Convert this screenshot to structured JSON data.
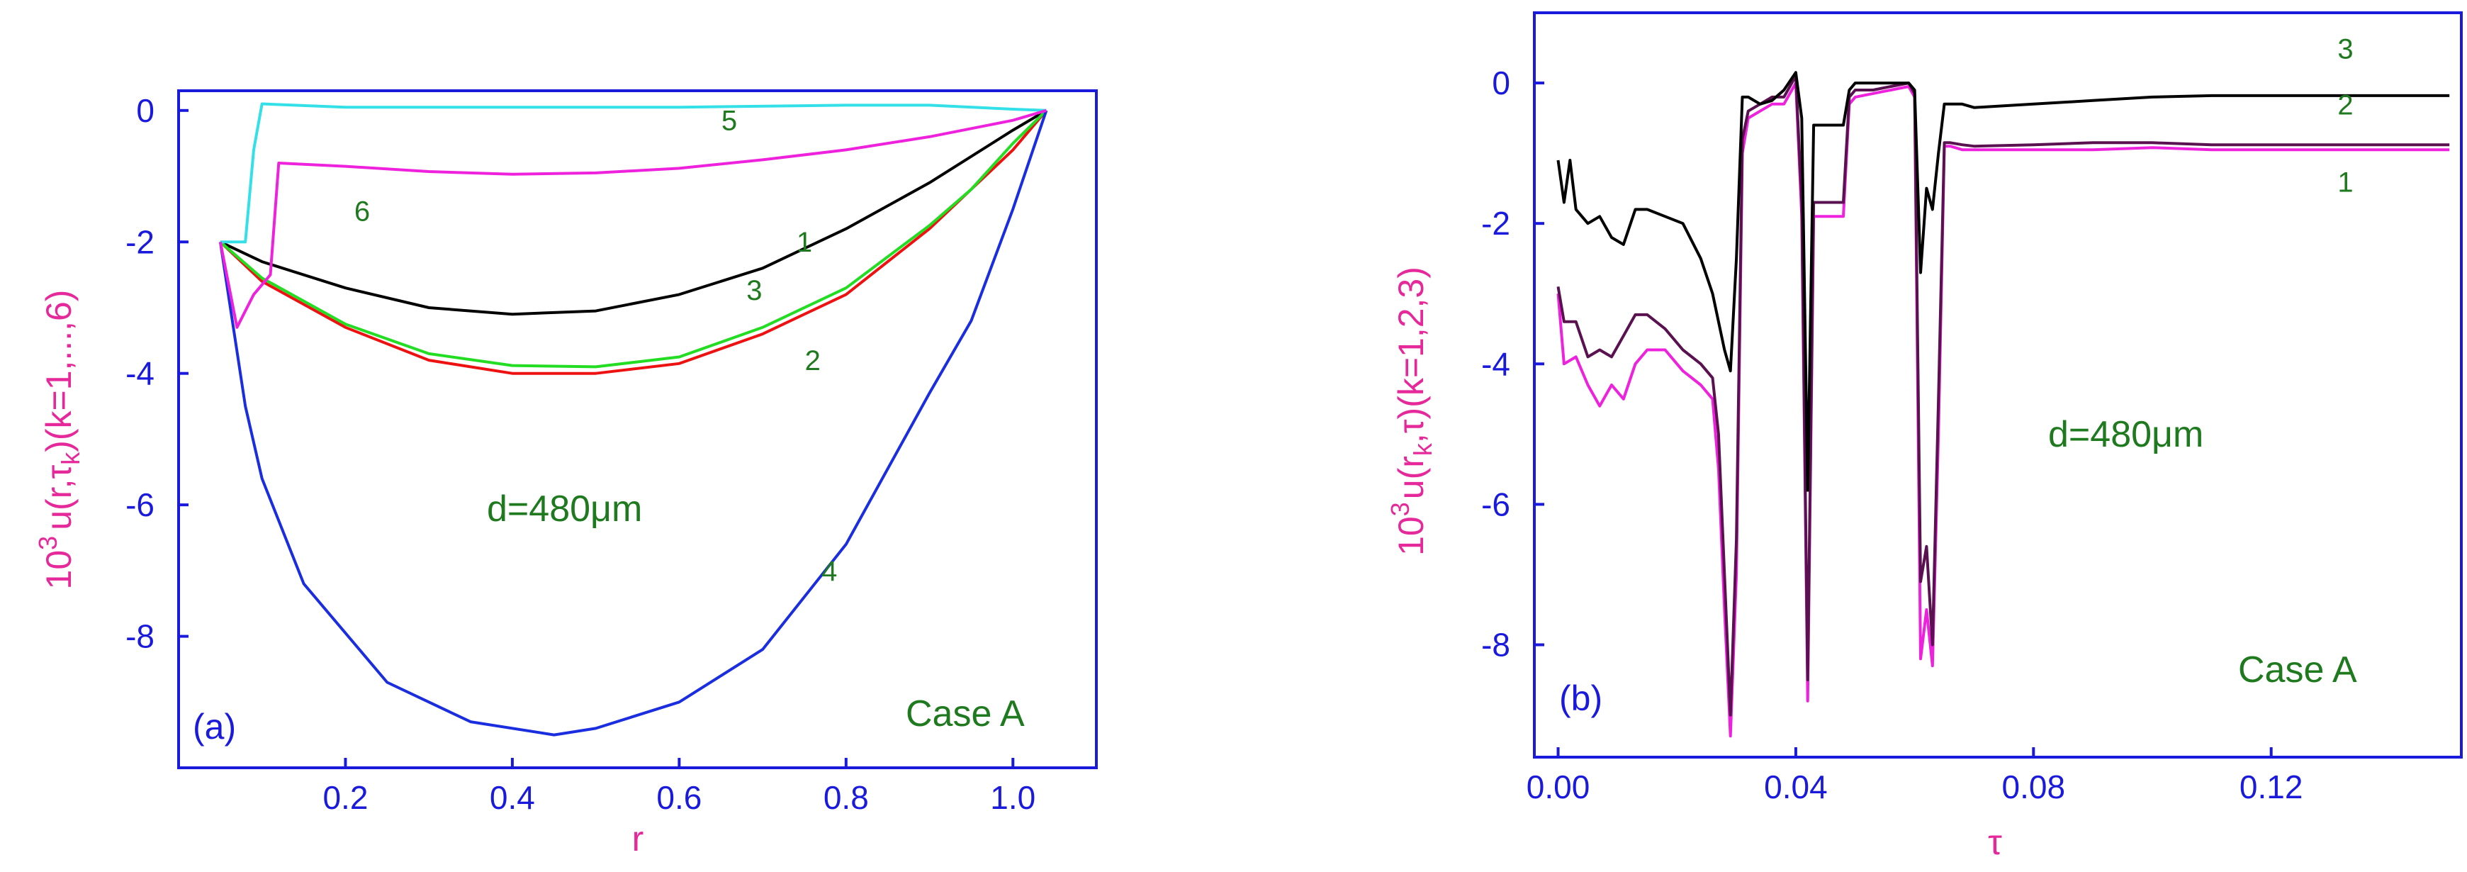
{
  "chart_data": [
    {
      "type": "line",
      "panel_label": "(a)",
      "xlabel": "r",
      "ylabel": "10<sup>3</sup> u(r,τ_k)(k=1,...,6)",
      "ylabel_text": "u(r,τ",
      "ylabel_exp": "3",
      "ylabel_base": "10",
      "ylabel_sub": "k",
      "ylabel_tail": ")(k=1,...,6)",
      "xlim": [
        0.0,
        1.1
      ],
      "ylim": [
        -10.0,
        0.3
      ],
      "xticks": [
        0.2,
        0.4,
        0.6,
        0.8,
        1.0
      ],
      "xtick_labels": [
        "0.2",
        "0.4",
        "0.6",
        "0.8",
        "1.0"
      ],
      "yticks": [
        0,
        -2,
        -4,
        -6,
        -8
      ],
      "ytick_labels": [
        "0",
        "-2",
        "-4",
        "-6",
        "-8"
      ],
      "annotations": {
        "thickness": "d=480μm",
        "case": "Case A"
      },
      "series": [
        {
          "name": "1",
          "color": "#000000",
          "x": [
            0.05,
            0.1,
            0.2,
            0.3,
            0.4,
            0.5,
            0.6,
            0.7,
            0.8,
            0.9,
            1.0,
            1.04
          ],
          "y": [
            -2.0,
            -2.3,
            -2.7,
            -3.0,
            -3.1,
            -3.05,
            -2.8,
            -2.4,
            -1.8,
            -1.1,
            -0.3,
            0.0
          ]
        },
        {
          "name": "2",
          "color": "#ee1111",
          "x": [
            0.05,
            0.1,
            0.2,
            0.3,
            0.4,
            0.5,
            0.6,
            0.7,
            0.8,
            0.9,
            0.95,
            1.0,
            1.04
          ],
          "y": [
            -2.0,
            -2.6,
            -3.3,
            -3.8,
            -4.0,
            -4.0,
            -3.85,
            -3.4,
            -2.8,
            -1.8,
            -1.2,
            -0.6,
            0.0
          ]
        },
        {
          "name": "3",
          "color": "#22dd22",
          "x": [
            0.05,
            0.1,
            0.2,
            0.3,
            0.4,
            0.5,
            0.6,
            0.7,
            0.8,
            0.9,
            0.95,
            1.0,
            1.04
          ],
          "y": [
            -2.0,
            -2.55,
            -3.25,
            -3.7,
            -3.88,
            -3.9,
            -3.75,
            -3.3,
            -2.7,
            -1.75,
            -1.2,
            -0.5,
            0.0
          ]
        },
        {
          "name": "4",
          "color": "#1a2ee0",
          "x": [
            0.05,
            0.08,
            0.1,
            0.15,
            0.25,
            0.35,
            0.45,
            0.5,
            0.6,
            0.7,
            0.8,
            0.9,
            0.95,
            1.0,
            1.04
          ],
          "y": [
            -2.0,
            -4.5,
            -5.6,
            -7.2,
            -8.7,
            -9.3,
            -9.5,
            -9.4,
            -9.0,
            -8.2,
            -6.6,
            -4.3,
            -3.2,
            -1.5,
            0.0
          ]
        },
        {
          "name": "5",
          "color": "#33e0e8",
          "x": [
            0.05,
            0.08,
            0.09,
            0.1,
            0.2,
            0.4,
            0.6,
            0.8,
            0.9,
            1.0,
            1.04
          ],
          "y": [
            -2.0,
            -2.0,
            -0.6,
            0.1,
            0.05,
            0.05,
            0.05,
            0.08,
            0.08,
            0.02,
            0.0
          ],
          "labelRaw": ""
        },
        {
          "name": "6",
          "color": "#ee22dd",
          "x": [
            0.05,
            0.07,
            0.09,
            0.11,
            0.12,
            0.2,
            0.3,
            0.4,
            0.5,
            0.6,
            0.7,
            0.8,
            0.9,
            1.0,
            1.04
          ],
          "y": [
            -2.0,
            -3.3,
            -2.8,
            -2.5,
            -0.8,
            -0.85,
            -0.93,
            -0.97,
            -0.95,
            -0.88,
            -0.75,
            -0.6,
            -0.4,
            -0.15,
            0.0
          ]
        }
      ],
      "curve_labels": [
        {
          "text": "5",
          "x": 0.66,
          "y": -0.3
        },
        {
          "text": "6",
          "x": 0.22,
          "y": -1.68
        },
        {
          "text": "1",
          "x": 0.75,
          "y": -2.15
        },
        {
          "text": "3",
          "x": 0.69,
          "y": -2.88
        },
        {
          "text": "2",
          "x": 0.76,
          "y": -3.95
        },
        {
          "text": "4",
          "x": 0.78,
          "y": -7.15
        }
      ]
    },
    {
      "type": "line",
      "panel_label": "(b)",
      "xlabel": "τ",
      "ylabel": "10<sup>3</sup>u(r_k,τ)(k=1,2,3)",
      "ylabel_base": "10",
      "ylabel_exp": "3",
      "ylabel_text": "u(r",
      "ylabel_sub": "k",
      "ylabel_tail": ",τ)(k=1,2,3)",
      "xlim": [
        -0.004,
        0.152
      ],
      "ylim": [
        -9.6,
        1.0
      ],
      "xticks": [
        0.0,
        0.04,
        0.08,
        0.12
      ],
      "xtick_labels": [
        "0.00",
        "0.04",
        "0.08",
        "0.12"
      ],
      "yticks": [
        0,
        -2,
        -4,
        -6,
        -8
      ],
      "ytick_labels": [
        "0",
        "-2",
        "-4",
        "-6",
        "-8"
      ],
      "annotations": {
        "thickness": "d=480μm",
        "case": "Case A"
      },
      "series": [
        {
          "name": "1",
          "color": "#ee22dd",
          "x": [
            0.0,
            0.001,
            0.003,
            0.005,
            0.007,
            0.009,
            0.011,
            0.013,
            0.015,
            0.018,
            0.021,
            0.024,
            0.026,
            0.027,
            0.028,
            0.029,
            0.03,
            0.031,
            0.032,
            0.034,
            0.036,
            0.038,
            0.04,
            0.041,
            0.042,
            0.043,
            0.045,
            0.048,
            0.049,
            0.05,
            0.053,
            0.056,
            0.059,
            0.06,
            0.061,
            0.062,
            0.063,
            0.064,
            0.065,
            0.066,
            0.068,
            0.07,
            0.08,
            0.09,
            0.1,
            0.11,
            0.12,
            0.13,
            0.14,
            0.15
          ],
          "y": [
            -3.0,
            -4.0,
            -3.9,
            -4.3,
            -4.6,
            -4.3,
            -4.5,
            -4.0,
            -3.8,
            -3.8,
            -4.1,
            -4.3,
            -4.5,
            -5.5,
            -7.5,
            -9.3,
            -7.0,
            -1.0,
            -0.5,
            -0.4,
            -0.3,
            -0.3,
            0.0,
            -1.9,
            -8.8,
            -1.9,
            -1.9,
            -1.9,
            -0.3,
            -0.2,
            -0.15,
            -0.1,
            -0.05,
            -0.2,
            -8.2,
            -7.5,
            -8.3,
            -5.0,
            -0.9,
            -0.9,
            -0.95,
            -0.95,
            -0.95,
            -0.95,
            -0.92,
            -0.95,
            -0.95,
            -0.95,
            -0.95,
            -0.95
          ]
        },
        {
          "name": "2",
          "color": "#5a1150",
          "x": [
            0.0,
            0.001,
            0.003,
            0.005,
            0.007,
            0.009,
            0.011,
            0.013,
            0.015,
            0.018,
            0.021,
            0.024,
            0.026,
            0.027,
            0.028,
            0.029,
            0.03,
            0.031,
            0.032,
            0.034,
            0.036,
            0.038,
            0.04,
            0.041,
            0.042,
            0.043,
            0.045,
            0.048,
            0.049,
            0.05,
            0.053,
            0.056,
            0.059,
            0.06,
            0.061,
            0.062,
            0.063,
            0.064,
            0.065,
            0.066,
            0.068,
            0.07,
            0.08,
            0.09,
            0.1,
            0.11,
            0.12,
            0.13,
            0.14,
            0.15
          ],
          "y": [
            -2.9,
            -3.4,
            -3.4,
            -3.9,
            -3.8,
            -3.9,
            -3.6,
            -3.3,
            -3.3,
            -3.5,
            -3.8,
            -4.0,
            -4.2,
            -5.0,
            -7.0,
            -9.0,
            -6.5,
            -0.8,
            -0.4,
            -0.3,
            -0.2,
            -0.2,
            0.1,
            -1.7,
            -8.5,
            -1.7,
            -1.7,
            -1.7,
            -0.2,
            -0.1,
            -0.1,
            -0.05,
            0.0,
            -0.15,
            -7.1,
            -6.6,
            -8.0,
            -4.5,
            -0.85,
            -0.85,
            -0.88,
            -0.9,
            -0.88,
            -0.85,
            -0.85,
            -0.88,
            -0.88,
            -0.88,
            -0.88,
            -0.88
          ]
        },
        {
          "name": "3",
          "color": "#000000",
          "x": [
            0.0,
            0.001,
            0.002,
            0.003,
            0.005,
            0.007,
            0.009,
            0.011,
            0.013,
            0.015,
            0.018,
            0.021,
            0.024,
            0.026,
            0.028,
            0.029,
            0.03,
            0.031,
            0.032,
            0.034,
            0.036,
            0.038,
            0.04,
            0.041,
            0.042,
            0.043,
            0.045,
            0.048,
            0.049,
            0.05,
            0.053,
            0.056,
            0.059,
            0.06,
            0.061,
            0.062,
            0.063,
            0.064,
            0.065,
            0.066,
            0.068,
            0.07,
            0.08,
            0.09,
            0.1,
            0.11,
            0.12,
            0.13,
            0.14,
            0.15
          ],
          "y": [
            -1.1,
            -1.7,
            -1.1,
            -1.8,
            -2.0,
            -1.9,
            -2.2,
            -2.3,
            -1.8,
            -1.8,
            -1.9,
            -2.0,
            -2.5,
            -3.0,
            -3.8,
            -4.1,
            -2.5,
            -0.2,
            -0.2,
            -0.3,
            -0.25,
            -0.1,
            0.15,
            -0.5,
            -5.8,
            -0.6,
            -0.6,
            -0.6,
            -0.1,
            0.0,
            0.0,
            0.0,
            0.0,
            -0.1,
            -2.7,
            -1.5,
            -1.8,
            -1.0,
            -0.3,
            -0.3,
            -0.3,
            -0.35,
            -0.3,
            -0.25,
            -0.2,
            -0.18,
            -0.18,
            -0.18,
            -0.18,
            -0.18
          ]
        }
      ],
      "curve_labels": [
        {
          "text": "3",
          "x": 0.1325,
          "y": 0.35
        },
        {
          "text": "2",
          "x": 0.1325,
          "y": -0.45
        },
        {
          "text": "1",
          "x": 0.1325,
          "y": -1.55
        }
      ]
    }
  ]
}
